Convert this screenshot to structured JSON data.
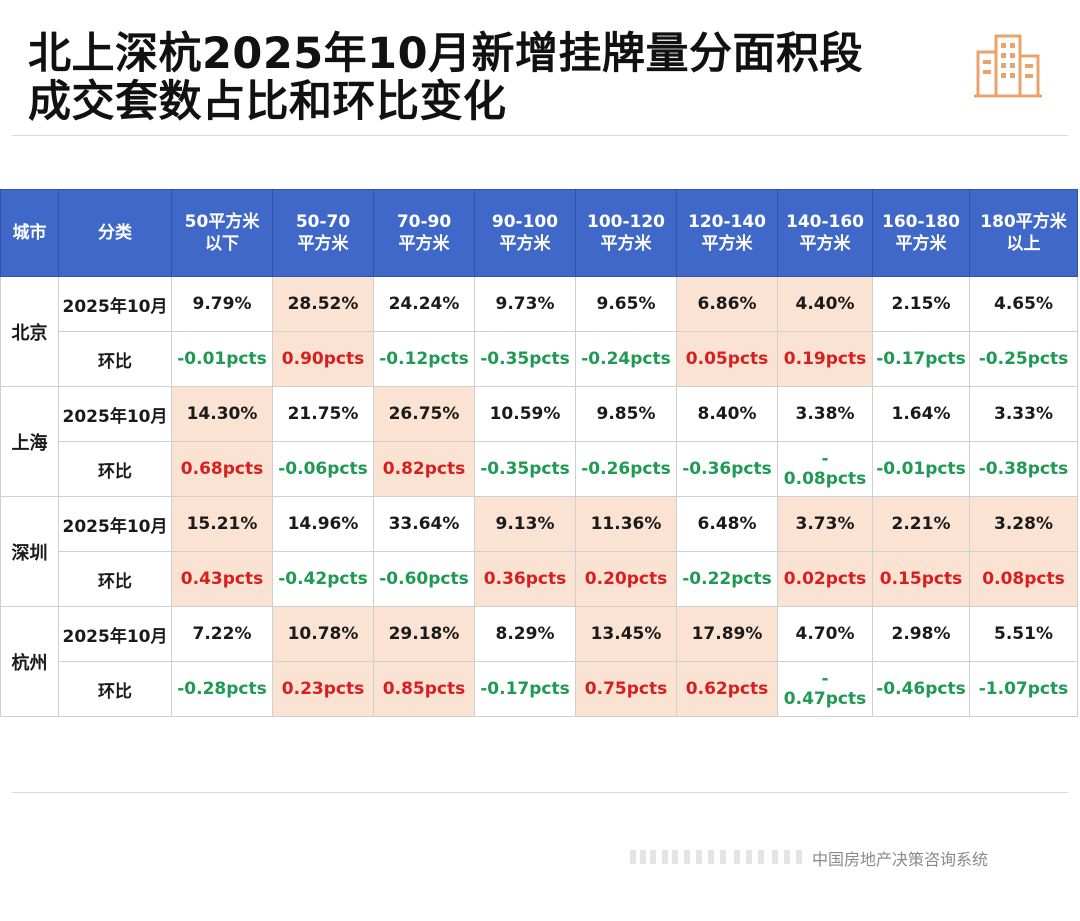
{
  "title_line1": "北上深杭2025年10月新增挂牌量分面积段",
  "title_line2": "成交套数占比和环比变化",
  "source": "中国房地产决策咨询系统",
  "colors": {
    "header_bg": "#3f68c8",
    "highlight": "#fbe3d4",
    "up": "#d81f1f",
    "down": "#1f9a52",
    "logo": "#e8a46c"
  },
  "header": {
    "city": "城市",
    "category": "分类",
    "ranges": [
      {
        "l1": "50平方米",
        "l2": "以下"
      },
      {
        "l1": "50-70",
        "l2": "平方米"
      },
      {
        "l1": "70-90",
        "l2": "平方米"
      },
      {
        "l1": "90-100",
        "l2": "平方米"
      },
      {
        "l1": "100-120",
        "l2": "平方米"
      },
      {
        "l1": "120-140",
        "l2": "平方米"
      },
      {
        "l1": "140-160",
        "l2": "平方米"
      },
      {
        "l1": "160-180",
        "l2": "平方米"
      },
      {
        "l1": "180平方米",
        "l2": "以上"
      }
    ]
  },
  "rows": [
    {
      "city": "北京",
      "share_label": "2025年10月",
      "share": [
        "9.79%",
        "28.52%",
        "24.24%",
        "9.73%",
        "9.65%",
        "6.86%",
        "4.40%",
        "2.15%",
        "4.65%"
      ],
      "mom_label": "环比",
      "mom": [
        "-0.01pcts",
        "0.90pcts",
        "-0.12pcts",
        "-0.35pcts",
        "-0.24pcts",
        "0.05pcts",
        "0.19pcts",
        "-0.17pcts",
        "-0.25pcts"
      ]
    },
    {
      "city": "上海",
      "share_label": "2025年10月",
      "share": [
        "14.30%",
        "21.75%",
        "26.75%",
        "10.59%",
        "9.85%",
        "8.40%",
        "3.38%",
        "1.64%",
        "3.33%"
      ],
      "mom_label": "环比",
      "mom": [
        "0.68pcts",
        "-0.06pcts",
        "0.82pcts",
        "-0.35pcts",
        "-0.26pcts",
        "-0.36pcts",
        "-0.08pcts",
        "-0.01pcts",
        "-0.38pcts"
      ]
    },
    {
      "city": "深圳",
      "share_label": "2025年10月",
      "share": [
        "15.21%",
        "14.96%",
        "33.64%",
        "9.13%",
        "11.36%",
        "6.48%",
        "3.73%",
        "2.21%",
        "3.28%"
      ],
      "mom_label": "环比",
      "mom": [
        "0.43pcts",
        "-0.42pcts",
        "-0.60pcts",
        "0.36pcts",
        "0.20pcts",
        "-0.22pcts",
        "0.02pcts",
        "0.15pcts",
        "0.08pcts"
      ]
    },
    {
      "city": "杭州",
      "share_label": "2025年10月",
      "share": [
        "7.22%",
        "10.78%",
        "29.18%",
        "8.29%",
        "13.45%",
        "17.89%",
        "4.70%",
        "2.98%",
        "5.51%"
      ],
      "mom_label": "环比",
      "mom": [
        "-0.28pcts",
        "0.23pcts",
        "0.85pcts",
        "-0.17pcts",
        "0.75pcts",
        "0.62pcts",
        "-0.47pcts",
        "-0.46pcts",
        "-1.07pcts"
      ]
    }
  ],
  "split_neg": {
    "sh6": [
      "-",
      "0.08pcts"
    ],
    "hz6": [
      "-",
      "0.47pcts"
    ]
  }
}
